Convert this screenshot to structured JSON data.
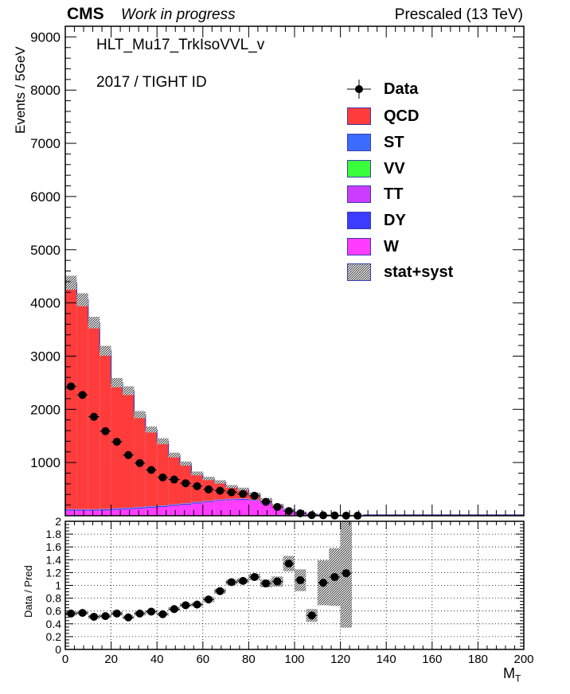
{
  "header": {
    "experiment": "CMS",
    "status": "Work in progress",
    "energy": "Prescaled (13 TeV)",
    "trigger": "HLT_Mu17_TrkIsoVVL_v",
    "selection": "2017 / TIGHT ID"
  },
  "legend": [
    {
      "key": "data",
      "label": "Data"
    },
    {
      "key": "qcd",
      "label": "QCD"
    },
    {
      "key": "st",
      "label": "ST"
    },
    {
      "key": "vv",
      "label": "VV"
    },
    {
      "key": "tt",
      "label": "TT"
    },
    {
      "key": "dy",
      "label": "DY"
    },
    {
      "key": "w",
      "label": "W"
    },
    {
      "key": "unc",
      "label": "stat+syst"
    }
  ],
  "colors": {
    "qcd": "#ff3c3c",
    "st": "#3c6cff",
    "vv": "#3cff3c",
    "tt": "#cc3cff",
    "dy": "#3c3cff",
    "w": "#ff3cff",
    "axis": "#000000",
    "uncertainty": "#9a9a9a"
  },
  "chart_data": [
    {
      "type": "bar",
      "stacked": true,
      "xlabel": "M",
      "xlabel_subscript": "T",
      "ylabel": "Events / 5GeV",
      "xlim": [
        0,
        200
      ],
      "ylim": [
        0,
        9200
      ],
      "xticks": [
        0,
        20,
        40,
        60,
        80,
        100,
        120,
        140,
        160,
        180,
        200
      ],
      "yticks": [
        1000,
        2000,
        3000,
        4000,
        5000,
        6000,
        7000,
        8000,
        9000
      ],
      "bins_low_edge": [
        0,
        5,
        10,
        15,
        20,
        25,
        30,
        35,
        40,
        45,
        50,
        55,
        60,
        65,
        70,
        75,
        80,
        85,
        90,
        95,
        100,
        105,
        110,
        115,
        120,
        125
      ],
      "bin_width": 5,
      "series": [
        {
          "name": "W",
          "key": "w",
          "values": [
            95,
            95,
            95,
            100,
            110,
            120,
            135,
            150,
            165,
            185,
            205,
            230,
            255,
            280,
            295,
            300,
            280,
            230,
            160,
            95,
            50,
            25,
            12,
            6,
            3,
            0
          ]
        },
        {
          "name": "DY",
          "key": "dy",
          "values": [
            20,
            20,
            20,
            20,
            20,
            20,
            20,
            20,
            20,
            20,
            20,
            20,
            15,
            15,
            15,
            15,
            12,
            10,
            8,
            6,
            4,
            2,
            1,
            0,
            0,
            0
          ]
        },
        {
          "name": "TT",
          "key": "tt",
          "values": [
            5,
            5,
            5,
            5,
            5,
            5,
            5,
            5,
            5,
            5,
            5,
            5,
            5,
            5,
            5,
            5,
            5,
            5,
            5,
            5,
            3,
            2,
            1,
            1,
            0,
            0
          ]
        },
        {
          "name": "VV",
          "key": "vv",
          "values": [
            2,
            2,
            2,
            2,
            2,
            2,
            2,
            2,
            2,
            2,
            2,
            2,
            2,
            2,
            2,
            2,
            2,
            2,
            2,
            2,
            1,
            1,
            1,
            0,
            0,
            0
          ]
        },
        {
          "name": "ST",
          "key": "st",
          "values": [
            3,
            3,
            3,
            3,
            3,
            3,
            3,
            3,
            3,
            3,
            3,
            3,
            3,
            3,
            3,
            3,
            3,
            3,
            3,
            3,
            2,
            1,
            1,
            0,
            0,
            0
          ]
        },
        {
          "name": "QCD",
          "key": "qcd",
          "values": [
            4255,
            3935,
            3505,
            2970,
            2360,
            2200,
            1735,
            1440,
            1205,
            925,
            745,
            535,
            420,
            330,
            230,
            175,
            108,
            60,
            30,
            14,
            8,
            4,
            2,
            1,
            0,
            0
          ]
        }
      ],
      "data_points": {
        "name": "Data",
        "x": [
          2.5,
          7.5,
          12.5,
          17.5,
          22.5,
          27.5,
          32.5,
          37.5,
          42.5,
          47.5,
          52.5,
          57.5,
          62.5,
          67.5,
          72.5,
          77.5,
          82.5,
          87.5,
          92.5,
          97.5,
          102.5,
          107.5,
          112.5,
          117.5,
          122.5,
          127.5
        ],
        "y": [
          2430,
          2270,
          1860,
          1590,
          1390,
          1140,
          990,
          860,
          720,
          680,
          610,
          555,
          495,
          470,
          440,
          410,
          375,
          260,
          165,
          88,
          45,
          12,
          8,
          5,
          2,
          1
        ]
      },
      "uncertainty_rel": [
        0.03,
        0.03,
        0.03,
        0.03,
        0.035,
        0.035,
        0.035,
        0.035,
        0.04,
        0.04,
        0.04,
        0.045,
        0.045,
        0.05,
        0.05,
        0.055,
        0.06,
        0.07,
        0.08,
        0.1,
        0.15,
        0.2,
        0.3,
        0.4,
        0.5,
        0.6
      ]
    },
    {
      "type": "scatter",
      "xlabel": "M",
      "xlabel_subscript": "T",
      "ylabel": "Data / Pred",
      "xlim": [
        0,
        200
      ],
      "ylim": [
        0,
        2
      ],
      "xticks": [
        0,
        20,
        40,
        60,
        80,
        100,
        120,
        140,
        160,
        180,
        200
      ],
      "yticks": [
        0,
        0.2,
        0.4,
        0.6,
        0.8,
        1,
        1.2,
        1.4,
        1.6,
        1.8,
        2
      ],
      "ytick_labels": [
        "0",
        "0.2",
        "0.4",
        "0.6",
        "0.8",
        "1",
        "1.2",
        "1.4",
        "1.6",
        "1.8",
        "2"
      ],
      "grid": true,
      "x": [
        2.5,
        7.5,
        12.5,
        17.5,
        22.5,
        27.5,
        32.5,
        37.5,
        42.5,
        47.5,
        52.5,
        57.5,
        62.5,
        67.5,
        72.5,
        77.5,
        82.5,
        87.5,
        92.5,
        97.5,
        102.5,
        107.5,
        112.5,
        117.5,
        122.5
      ],
      "y": [
        0.56,
        0.57,
        0.51,
        0.52,
        0.56,
        0.5,
        0.56,
        0.59,
        0.55,
        0.63,
        0.69,
        0.7,
        0.78,
        0.91,
        1.05,
        1.07,
        1.13,
        1.03,
        1.06,
        1.34,
        1.08,
        0.53,
        1.04,
        1.13,
        1.19
      ],
      "band_halfwidth": [
        0.03,
        0.03,
        0.03,
        0.03,
        0.03,
        0.03,
        0.03,
        0.03,
        0.03,
        0.03,
        0.03,
        0.03,
        0.04,
        0.04,
        0.04,
        0.04,
        0.05,
        0.06,
        0.08,
        0.12,
        0.17,
        0.1,
        0.35,
        0.45,
        0.85
      ]
    }
  ]
}
